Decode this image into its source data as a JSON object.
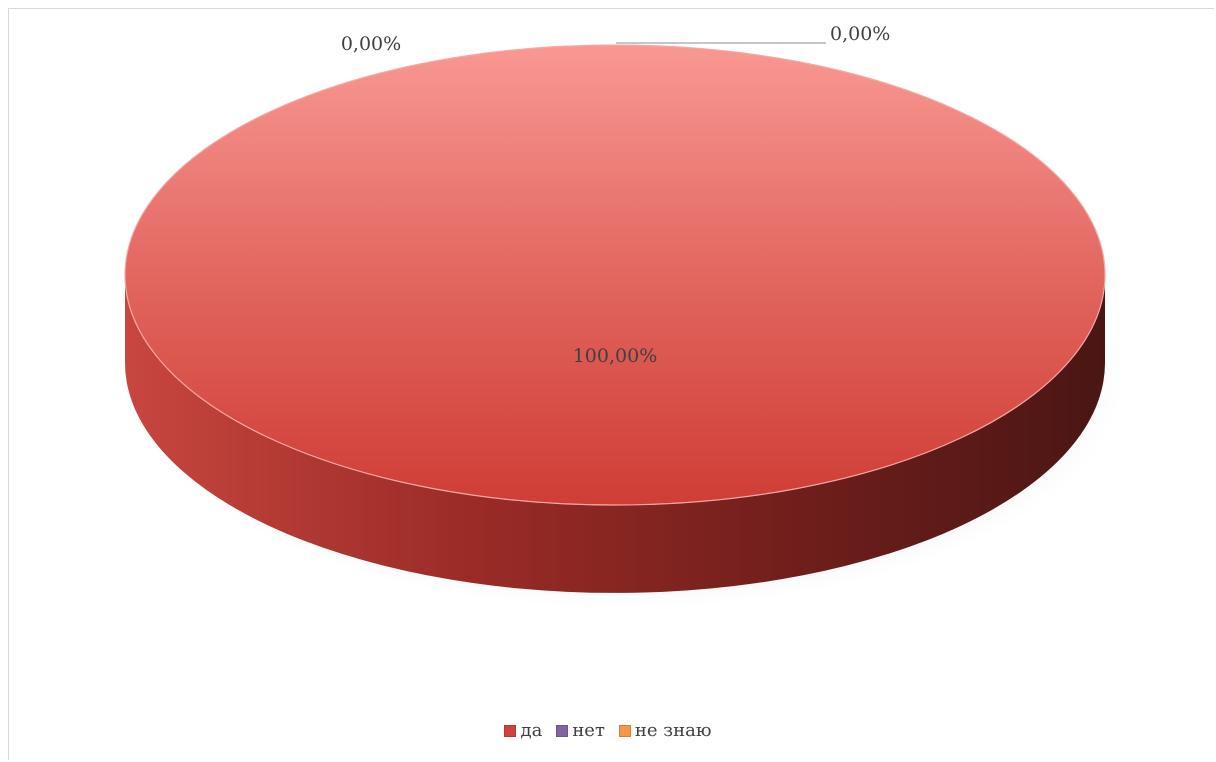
{
  "chart_data": {
    "type": "pie",
    "style": "3d",
    "categories": [
      "да",
      "нет",
      "не знаю"
    ],
    "values": [
      100,
      0,
      0
    ],
    "data_labels": [
      "100,00%",
      "0,00%",
      "0,00%"
    ],
    "colors": [
      "#d0433c",
      "#8064a2",
      "#f79646"
    ],
    "legend_position": "bottom",
    "title": ""
  },
  "legend": {
    "items": [
      {
        "label": "да",
        "color": "#d0433c"
      },
      {
        "label": "нет",
        "color": "#8064a2"
      },
      {
        "label": "не знаю",
        "color": "#f79646"
      }
    ]
  }
}
